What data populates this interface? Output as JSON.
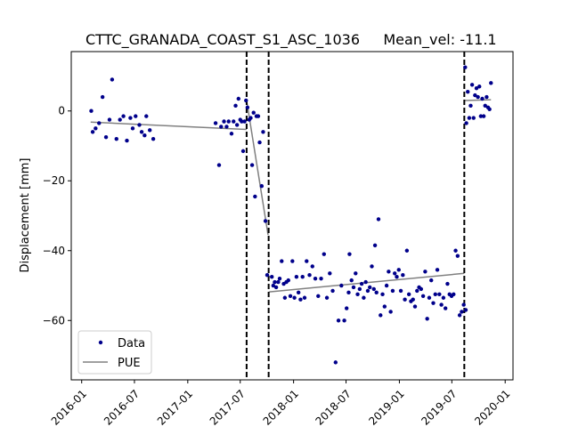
{
  "chart_data": {
    "type": "scatter",
    "title": "CTTC_GRANADA_COAST_S1_ASC_1036",
    "subtitle": "Mean_vel: -11.1",
    "xlabel": "",
    "ylabel": "Displacement [mm]",
    "x_axis_type": "date",
    "xlim": [
      "2015-11-26",
      "2020-01-28"
    ],
    "ylim": [
      -77,
      17
    ],
    "x_ticks": [
      "2016-01",
      "2016-07",
      "2017-01",
      "2017-07",
      "2018-01",
      "2018-07",
      "2019-01",
      "2019-07",
      "2020-01"
    ],
    "y_ticks": [
      -60,
      -40,
      -20,
      0
    ],
    "y_tick_labels": [
      "−60",
      "−40",
      "−20",
      "0"
    ],
    "grid": false,
    "legend_position": "lower-left",
    "colors": {
      "data": "#00008b",
      "pue": "#808080",
      "breaks": "#000000"
    },
    "series": [
      {
        "name": "Data",
        "style": "points",
        "points": [
          [
            "2016-02-03",
            0.0
          ],
          [
            "2016-02-08",
            -6.0
          ],
          [
            "2016-02-18",
            -5.0
          ],
          [
            "2016-03-01",
            -3.5
          ],
          [
            "2016-03-13",
            4.0
          ],
          [
            "2016-03-25",
            -7.5
          ],
          [
            "2016-04-06",
            -2.5
          ],
          [
            "2016-04-15",
            9.0
          ],
          [
            "2016-04-30",
            -8.0
          ],
          [
            "2016-05-12",
            -2.5
          ],
          [
            "2016-05-24",
            -1.5
          ],
          [
            "2016-06-05",
            -8.5
          ],
          [
            "2016-06-17",
            -2.0
          ],
          [
            "2016-06-25",
            -5.0
          ],
          [
            "2016-07-05",
            -1.5
          ],
          [
            "2016-07-18",
            -4.0
          ],
          [
            "2016-07-26",
            -6.0
          ],
          [
            "2016-08-05",
            -7.0
          ],
          [
            "2016-08-11",
            -1.5
          ],
          [
            "2016-08-23",
            -5.5
          ],
          [
            "2016-09-04",
            -8.0
          ],
          [
            "2017-04-07",
            -3.5
          ],
          [
            "2017-04-19",
            -15.5
          ],
          [
            "2017-04-26",
            -4.5
          ],
          [
            "2017-05-06",
            -3.0
          ],
          [
            "2017-05-15",
            -4.5
          ],
          [
            "2017-05-22",
            -3.0
          ],
          [
            "2017-06-01",
            -6.5
          ],
          [
            "2017-06-08",
            -3.0
          ],
          [
            "2017-06-15",
            1.5
          ],
          [
            "2017-06-20",
            -4.0
          ],
          [
            "2017-06-25",
            3.5
          ],
          [
            "2017-07-01",
            -2.5
          ],
          [
            "2017-07-06",
            -3.0
          ],
          [
            "2017-07-11",
            -11.5
          ],
          [
            "2017-07-16",
            -3.0
          ],
          [
            "2017-07-21",
            3.0
          ],
          [
            "2017-07-26",
            1.0
          ],
          [
            "2017-08-01",
            -2.5
          ],
          [
            "2017-08-06",
            -2.0
          ],
          [
            "2017-08-11",
            -15.5
          ],
          [
            "2017-08-16",
            -0.5
          ],
          [
            "2017-08-21",
            -24.5
          ],
          [
            "2017-08-26",
            -1.5
          ],
          [
            "2017-09-01",
            -1.5
          ],
          [
            "2017-09-06",
            -9.0
          ],
          [
            "2017-09-13",
            -21.5
          ],
          [
            "2017-09-18",
            -6.0
          ],
          [
            "2017-09-26",
            -31.5
          ],
          [
            "2017-10-02",
            -47.0
          ],
          [
            "2017-10-18",
            -47.5
          ],
          [
            "2017-10-23",
            -50.0
          ],
          [
            "2017-10-28",
            -49.0
          ],
          [
            "2017-11-02",
            -50.5
          ],
          [
            "2017-11-09",
            -49.0
          ],
          [
            "2017-11-14",
            -48.0
          ],
          [
            "2017-11-21",
            -43.0
          ],
          [
            "2017-11-28",
            -49.5
          ],
          [
            "2017-12-02",
            -53.5
          ],
          [
            "2017-12-07",
            -49.0
          ],
          [
            "2017-12-14",
            -48.5
          ],
          [
            "2017-12-21",
            -53.0
          ],
          [
            "2017-12-28",
            -43.0
          ],
          [
            "2018-01-04",
            -53.5
          ],
          [
            "2018-01-11",
            -47.5
          ],
          [
            "2018-01-18",
            -52.0
          ],
          [
            "2018-01-25",
            -54.0
          ],
          [
            "2018-02-01",
            -47.5
          ],
          [
            "2018-02-08",
            -53.5
          ],
          [
            "2018-02-15",
            -43.0
          ],
          [
            "2018-02-25",
            -47.0
          ],
          [
            "2018-03-07",
            -44.5
          ],
          [
            "2018-03-17",
            -48.0
          ],
          [
            "2018-03-27",
            -53.0
          ],
          [
            "2018-04-06",
            -48.0
          ],
          [
            "2018-04-16",
            -41.0
          ],
          [
            "2018-04-26",
            -53.5
          ],
          [
            "2018-05-06",
            -46.5
          ],
          [
            "2018-05-16",
            -51.5
          ],
          [
            "2018-05-26",
            -72.0
          ],
          [
            "2018-06-05",
            -60.0
          ],
          [
            "2018-06-15",
            -50.0
          ],
          [
            "2018-06-25",
            -60.0
          ],
          [
            "2018-07-03",
            -56.5
          ],
          [
            "2018-07-10",
            -52.0
          ],
          [
            "2018-07-13",
            -41.0
          ],
          [
            "2018-07-20",
            -48.5
          ],
          [
            "2018-07-27",
            -50.5
          ],
          [
            "2018-08-03",
            -46.5
          ],
          [
            "2018-08-10",
            -52.5
          ],
          [
            "2018-08-17",
            -51.0
          ],
          [
            "2018-08-24",
            -49.5
          ],
          [
            "2018-08-31",
            -53.5
          ],
          [
            "2018-09-07",
            -49.0
          ],
          [
            "2018-09-14",
            -51.5
          ],
          [
            "2018-09-21",
            -50.5
          ],
          [
            "2018-09-28",
            -44.5
          ],
          [
            "2018-10-05",
            -51.0
          ],
          [
            "2018-10-09",
            -38.5
          ],
          [
            "2018-10-14",
            -52.0
          ],
          [
            "2018-10-21",
            -31.0
          ],
          [
            "2018-10-28",
            -58.5
          ],
          [
            "2018-11-04",
            -52.5
          ],
          [
            "2018-11-11",
            -56.0
          ],
          [
            "2018-11-18",
            -50.0
          ],
          [
            "2018-11-25",
            -46.0
          ],
          [
            "2018-12-02",
            -57.5
          ],
          [
            "2018-12-09",
            -51.5
          ],
          [
            "2018-12-16",
            -46.5
          ],
          [
            "2018-12-23",
            -47.5
          ],
          [
            "2018-12-30",
            -45.5
          ],
          [
            "2019-01-06",
            -51.5
          ],
          [
            "2019-01-13",
            -47.0
          ],
          [
            "2019-01-20",
            -54.0
          ],
          [
            "2019-01-27",
            -40.0
          ],
          [
            "2019-02-03",
            -52.5
          ],
          [
            "2019-02-10",
            -54.5
          ],
          [
            "2019-02-17",
            -54.0
          ],
          [
            "2019-02-24",
            -56.0
          ],
          [
            "2019-03-03",
            -51.5
          ],
          [
            "2019-03-10",
            -50.5
          ],
          [
            "2019-03-17",
            -51.0
          ],
          [
            "2019-03-24",
            -53.0
          ],
          [
            "2019-03-31",
            -46.0
          ],
          [
            "2019-04-07",
            -59.5
          ],
          [
            "2019-04-14",
            -53.5
          ],
          [
            "2019-04-21",
            -48.5
          ],
          [
            "2019-04-28",
            -55.0
          ],
          [
            "2019-05-05",
            -52.5
          ],
          [
            "2019-05-12",
            -45.5
          ],
          [
            "2019-05-19",
            -52.5
          ],
          [
            "2019-05-26",
            -55.5
          ],
          [
            "2019-06-02",
            -53.5
          ],
          [
            "2019-06-09",
            -56.5
          ],
          [
            "2019-06-16",
            -49.5
          ],
          [
            "2019-06-23",
            -52.5
          ],
          [
            "2019-06-30",
            -53.0
          ],
          [
            "2019-07-07",
            -52.5
          ],
          [
            "2019-07-14",
            -40.0
          ],
          [
            "2019-07-21",
            -41.5
          ],
          [
            "2019-07-28",
            -58.5
          ],
          [
            "2019-08-04",
            -57.5
          ],
          [
            "2019-08-11",
            -55.5
          ],
          [
            "2019-08-18",
            -57.0
          ],
          [
            "2019-08-16",
            12.5
          ],
          [
            "2019-08-20",
            -3.5
          ],
          [
            "2019-08-25",
            5.5
          ],
          [
            "2019-08-30",
            -2.0
          ],
          [
            "2019-09-04",
            1.5
          ],
          [
            "2019-09-09",
            7.5
          ],
          [
            "2019-09-14",
            -2.0
          ],
          [
            "2019-09-19",
            4.5
          ],
          [
            "2019-09-24",
            6.5
          ],
          [
            "2019-09-29",
            4.0
          ],
          [
            "2019-10-04",
            7.0
          ],
          [
            "2019-10-09",
            -1.5
          ],
          [
            "2019-10-14",
            3.5
          ],
          [
            "2019-10-19",
            -1.5
          ],
          [
            "2019-10-24",
            1.5
          ],
          [
            "2019-10-29",
            4.0
          ],
          [
            "2019-11-03",
            1.0
          ],
          [
            "2019-11-08",
            0.5
          ],
          [
            "2019-11-13",
            8.0
          ]
        ]
      },
      {
        "name": "PUE",
        "style": "line",
        "segments": [
          [
            [
              "2016-02-01",
              -3.2
            ],
            [
              "2017-07-23",
              -5.3
            ]
          ],
          [
            [
              "2017-07-23",
              3.0
            ],
            [
              "2017-10-05",
              -35.5
            ]
          ],
          [
            [
              "2017-10-09",
              -51.8
            ],
            [
              "2019-08-13",
              -46.5
            ]
          ],
          [
            [
              "2019-08-13",
              3.0
            ],
            [
              "2019-11-13",
              3.2
            ]
          ]
        ]
      }
    ],
    "breaks": [
      "2017-07-23",
      "2017-10-07",
      "2019-08-13"
    ]
  }
}
